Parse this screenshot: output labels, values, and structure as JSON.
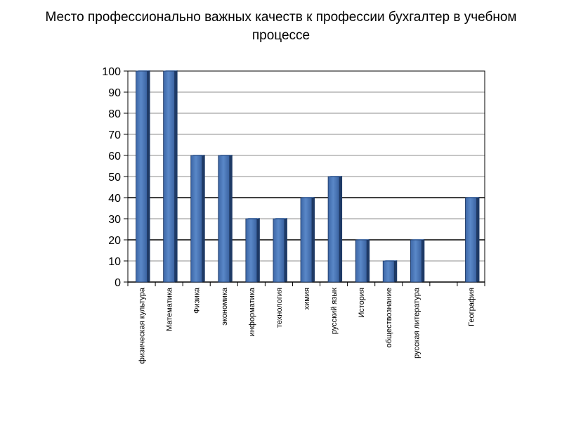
{
  "chart_data": {
    "type": "bar",
    "title": "Место профессионально важных качеств к профессии бухгалтер в учебном процессе",
    "categories": [
      "физическая культура",
      "Математика",
      "Физика",
      "экономика",
      "информатика",
      "технология",
      "химия",
      "русский язык",
      "История",
      "обществознание",
      "русская литература",
      "",
      "География"
    ],
    "values": [
      100,
      100,
      60,
      60,
      30,
      30,
      40,
      50,
      20,
      10,
      20,
      null,
      40
    ],
    "ylim": [
      0,
      100
    ],
    "yticks": [
      "0",
      "10",
      "20",
      "30",
      "40",
      "50",
      "60",
      "70",
      "80",
      "90",
      "100"
    ],
    "bar_color": "#4a78b8",
    "grid": true
  }
}
